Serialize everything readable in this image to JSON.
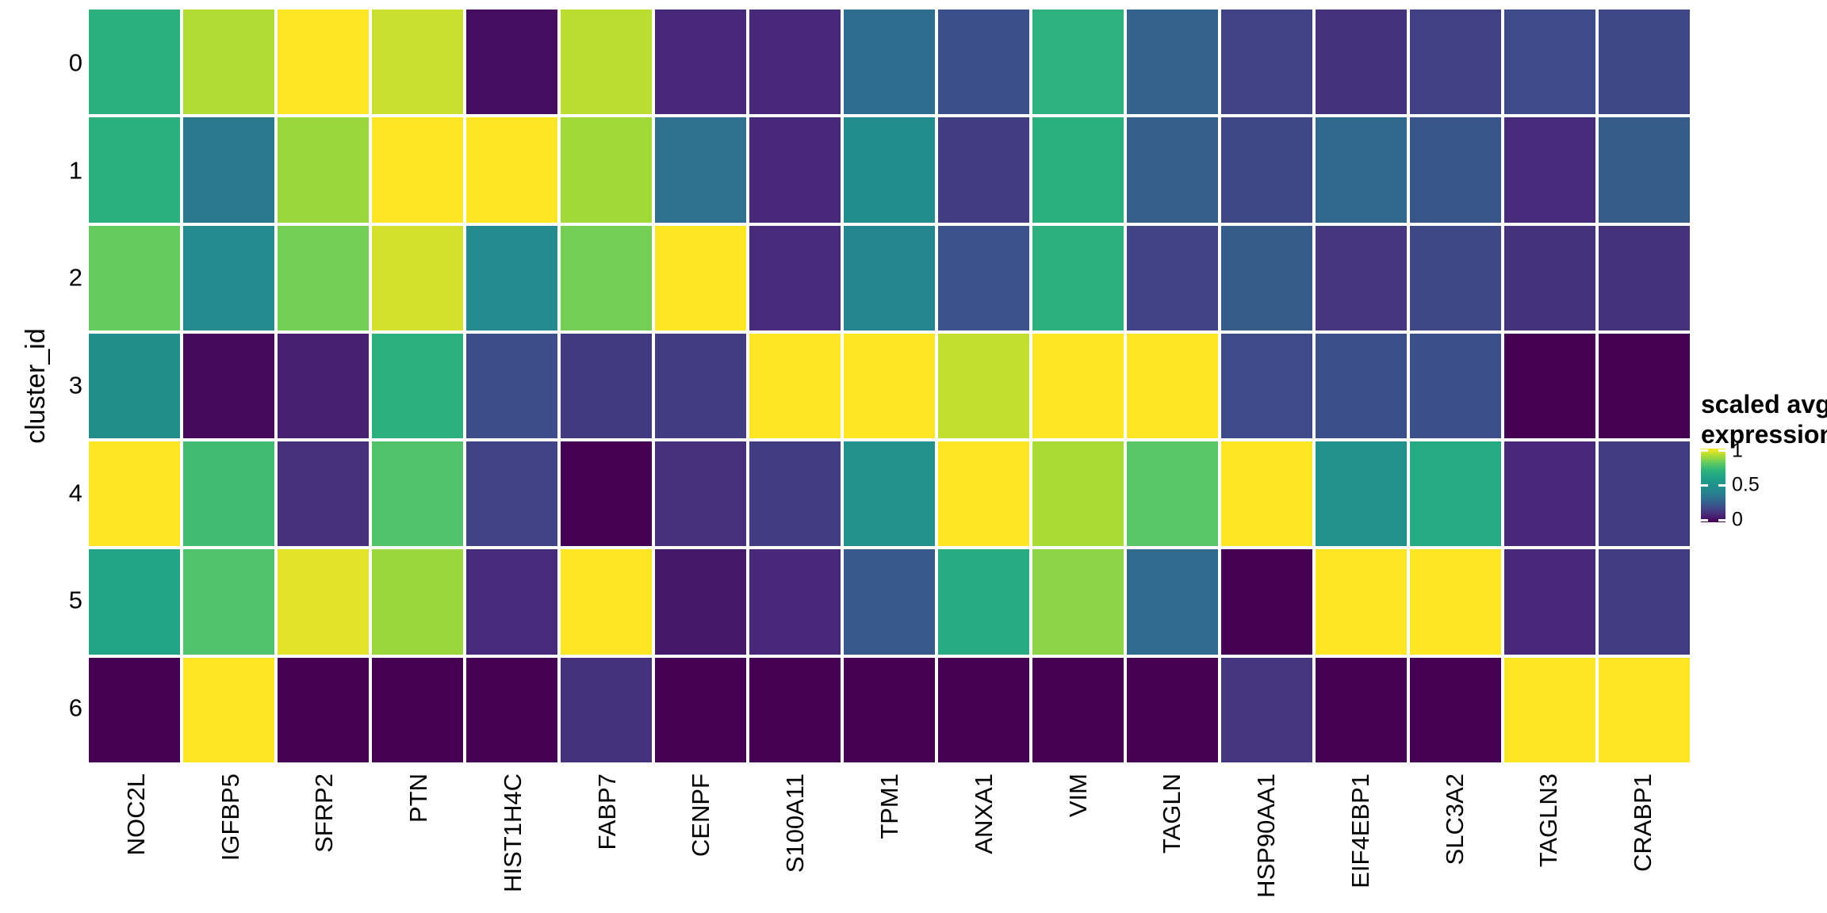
{
  "figure": {
    "background": "#FFFFFF",
    "legend": {
      "title_line1": "scaled avg.",
      "title_line2": "expression",
      "tick_labels": [
        "1",
        "0.5",
        "0"
      ]
    }
  },
  "chart_data": {
    "type": "heatmap",
    "title": "",
    "xlabel": "",
    "ylabel": "cluster_id",
    "colormap": "viridis",
    "legend_title": "scaled avg. expression",
    "legend_tick_values": [
      1,
      0.5,
      0
    ],
    "value_range": [
      0,
      1
    ],
    "grid_line_color": "#FFFFFF",
    "x_categories": [
      "NOC2L",
      "IGFBP5",
      "SFRP2",
      "PTN",
      "HIST1H4C",
      "FABP7",
      "CENPF",
      "S100A11",
      "TPM1",
      "ANXA1",
      "VIM",
      "TAGLN",
      "HSP90AA1",
      "EIF4EBP1",
      "SLC3A2",
      "TAGLN3",
      "CRABP1"
    ],
    "y_categories": [
      "0",
      "1",
      "2",
      "3",
      "4",
      "5",
      "6"
    ],
    "values": [
      [
        0.68,
        0.91,
        1.0,
        0.94,
        0.03,
        0.92,
        0.1,
        0.1,
        0.32,
        0.22,
        0.7,
        0.28,
        0.18,
        0.13,
        0.17,
        0.2,
        0.19
      ],
      [
        0.68,
        0.36,
        0.88,
        1.0,
        1.0,
        0.89,
        0.33,
        0.1,
        0.47,
        0.16,
        0.68,
        0.27,
        0.19,
        0.3,
        0.24,
        0.11,
        0.26
      ],
      [
        0.81,
        0.46,
        0.83,
        0.95,
        0.46,
        0.83,
        1.0,
        0.11,
        0.42,
        0.23,
        0.69,
        0.18,
        0.26,
        0.14,
        0.19,
        0.13,
        0.13
      ],
      [
        0.48,
        0.02,
        0.08,
        0.69,
        0.21,
        0.15,
        0.16,
        1.0,
        1.0,
        0.93,
        1.0,
        1.0,
        0.2,
        0.22,
        0.22,
        0.0,
        0.0
      ],
      [
        1.0,
        0.74,
        0.12,
        0.77,
        0.18,
        0.0,
        0.12,
        0.16,
        0.5,
        1.0,
        0.9,
        0.79,
        1.0,
        0.5,
        0.65,
        0.1,
        0.16
      ],
      [
        0.62,
        0.77,
        0.97,
        0.88,
        0.11,
        1.0,
        0.06,
        0.1,
        0.25,
        0.66,
        0.86,
        0.31,
        0.0,
        1.0,
        1.0,
        0.1,
        0.16
      ],
      [
        0.0,
        1.0,
        0.0,
        0.0,
        0.0,
        0.13,
        0.0,
        0.0,
        0.0,
        0.0,
        0.0,
        0.0,
        0.14,
        0.0,
        0.0,
        1.0,
        1.0
      ]
    ],
    "viridis_stops": [
      "#440154",
      "#482878",
      "#3E4A89",
      "#31688E",
      "#26828E",
      "#21918C",
      "#1FA188",
      "#2DB27D",
      "#5EC962",
      "#A8DB34",
      "#FDE725"
    ]
  }
}
